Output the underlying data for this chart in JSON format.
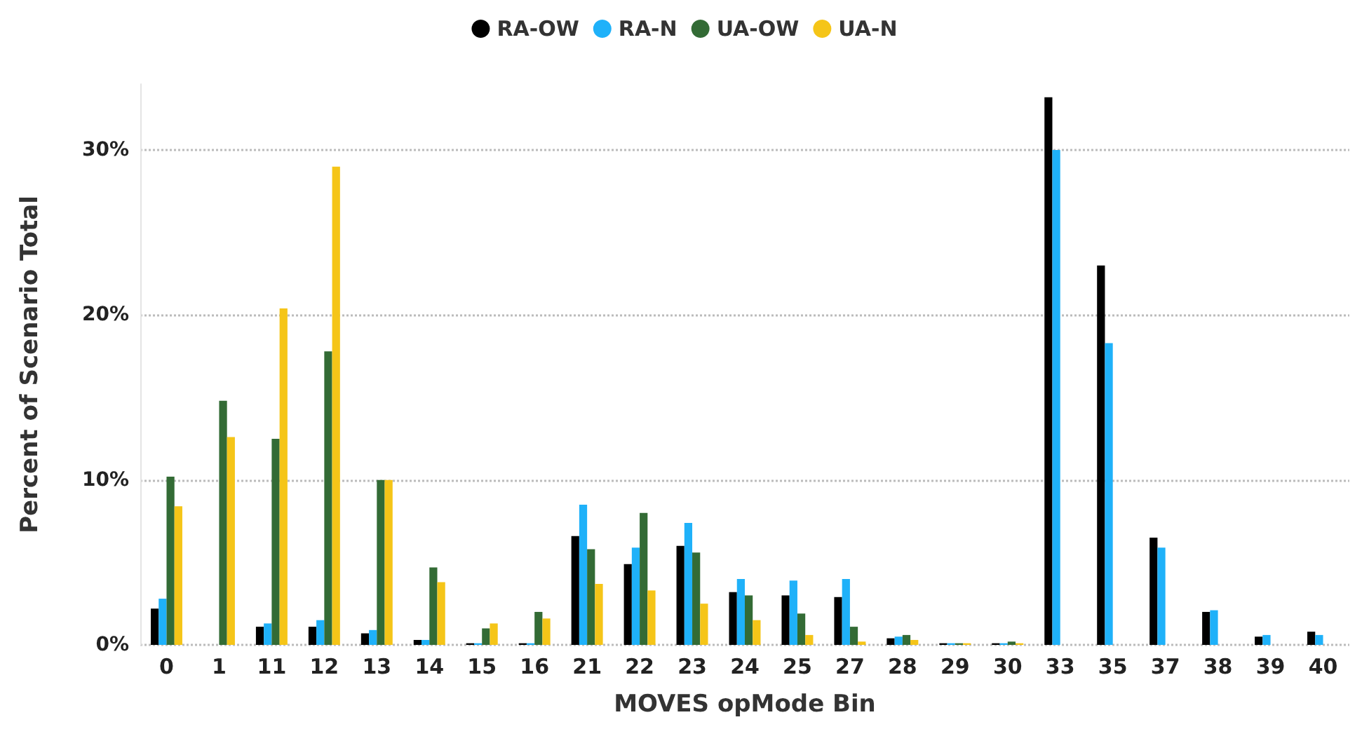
{
  "chart_data": {
    "type": "bar",
    "xlabel": "MOVES opMode Bin",
    "ylabel": "Percent of Scenario Total",
    "categories": [
      "0",
      "1",
      "11",
      "12",
      "13",
      "14",
      "15",
      "16",
      "21",
      "22",
      "23",
      "24",
      "25",
      "27",
      "28",
      "29",
      "30",
      "33",
      "35",
      "37",
      "38",
      "39",
      "40"
    ],
    "series": [
      {
        "name": "RA-OW",
        "color": "#000000",
        "values": [
          2.2,
          null,
          1.1,
          1.1,
          0.7,
          0.3,
          0.1,
          0.1,
          6.6,
          4.9,
          6.0,
          3.2,
          3.0,
          2.9,
          0.4,
          0.1,
          0.1,
          33.2,
          23.0,
          6.5,
          2.0,
          0.5,
          0.8
        ]
      },
      {
        "name": "RA-N",
        "color": "#1fb1f9",
        "values": [
          2.8,
          null,
          1.3,
          1.5,
          0.9,
          0.3,
          0.1,
          0.1,
          8.5,
          5.9,
          7.4,
          4.0,
          3.9,
          4.0,
          0.5,
          0.1,
          0.1,
          30.0,
          18.3,
          5.9,
          2.1,
          0.6,
          0.6
        ]
      },
      {
        "name": "UA-OW",
        "color": "#336b35",
        "values": [
          10.2,
          14.8,
          12.5,
          17.8,
          10.0,
          4.7,
          1.0,
          2.0,
          5.8,
          8.0,
          5.6,
          3.0,
          1.9,
          1.1,
          0.6,
          0.1,
          0.2,
          null,
          null,
          null,
          null,
          null,
          null
        ]
      },
      {
        "name": "UA-N",
        "color": "#f5c518",
        "values": [
          8.4,
          12.6,
          20.4,
          29.0,
          10.0,
          3.8,
          1.3,
          1.6,
          3.7,
          3.3,
          2.5,
          1.5,
          0.6,
          0.2,
          0.3,
          0.1,
          0.1,
          null,
          null,
          null,
          null,
          null,
          null
        ]
      }
    ],
    "ylim": [
      0,
      34
    ],
    "yticks": [
      {
        "value": 0,
        "label": "0%"
      },
      {
        "value": 10,
        "label": "10%"
      },
      {
        "value": 20,
        "label": "20%"
      },
      {
        "value": 30,
        "label": "30%"
      }
    ],
    "grid": "y",
    "legend": "top",
    "marker": "circle"
  }
}
